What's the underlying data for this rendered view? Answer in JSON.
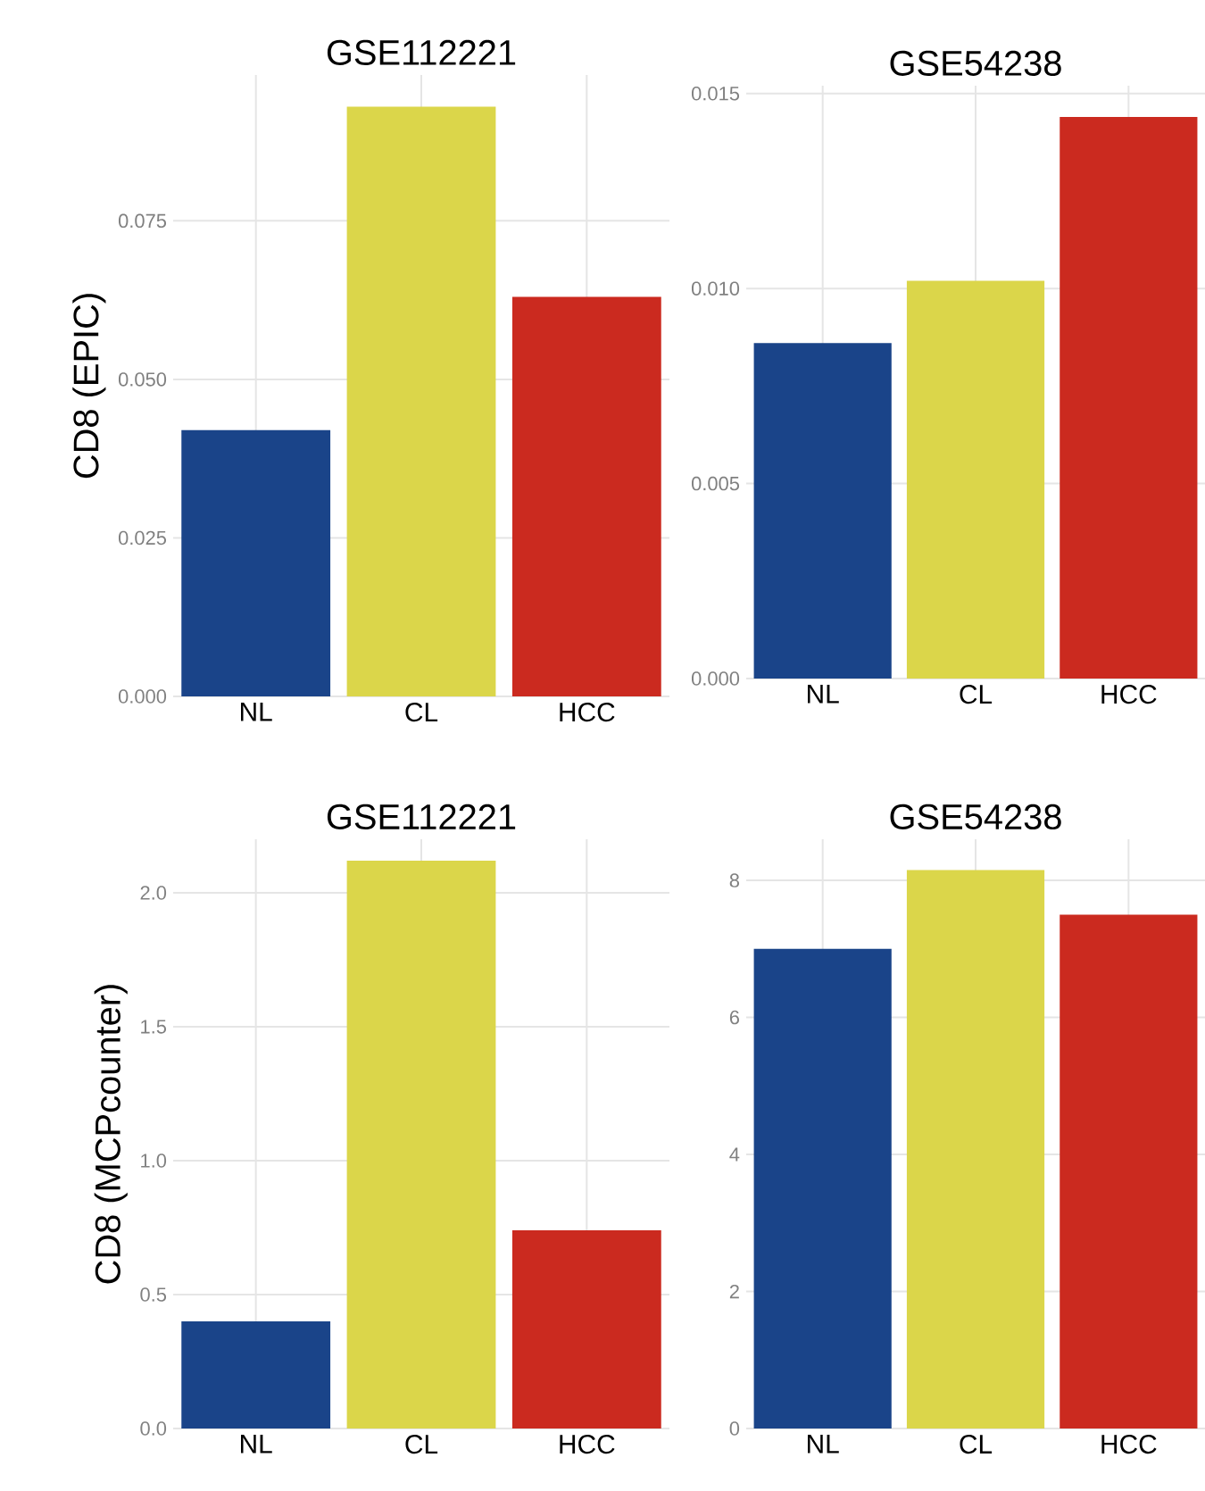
{
  "chart_data": [
    {
      "type": "bar",
      "title": "GSE112221",
      "ylabel": "CD8 (EPIC)",
      "categories": [
        "NL",
        "CL",
        "HCC"
      ],
      "values": [
        0.042,
        0.093,
        0.063
      ],
      "colors": [
        "#1a4489",
        "#dbd64a",
        "#cb2a1f"
      ],
      "ylim": [
        0,
        0.098
      ],
      "yticks": [
        {
          "value": 0,
          "label": "0.000"
        },
        {
          "value": 0.025,
          "label": "0.025"
        },
        {
          "value": 0.05,
          "label": "0.050"
        },
        {
          "value": 0.075,
          "label": "0.075"
        }
      ],
      "grid": true
    },
    {
      "type": "bar",
      "title": "GSE54238",
      "categories": [
        "NL",
        "CL",
        "HCC"
      ],
      "values": [
        0.0086,
        0.0102,
        0.0144
      ],
      "colors": [
        "#1a4489",
        "#dbd64a",
        "#cb2a1f"
      ],
      "ylim": [
        0,
        0.0152
      ],
      "yticks": [
        {
          "value": 0,
          "label": "0.000"
        },
        {
          "value": 0.005,
          "label": "0.005"
        },
        {
          "value": 0.01,
          "label": "0.010"
        },
        {
          "value": 0.015,
          "label": "0.015"
        }
      ],
      "grid": true
    },
    {
      "type": "bar",
      "title": "GSE112221",
      "ylabel": "CD8 (MCPcounter)",
      "categories": [
        "NL",
        "CL",
        "HCC"
      ],
      "values": [
        0.4,
        2.12,
        0.74
      ],
      "colors": [
        "#1a4489",
        "#dbd64a",
        "#cb2a1f"
      ],
      "ylim": [
        0,
        2.2
      ],
      "yticks": [
        {
          "value": 0,
          "label": "0.0"
        },
        {
          "value": 0.5,
          "label": "0.5"
        },
        {
          "value": 1,
          "label": "1.0"
        },
        {
          "value": 1.5,
          "label": "1.5"
        },
        {
          "value": 2,
          "label": "2.0"
        }
      ],
      "grid": true
    },
    {
      "type": "bar",
      "title": "GSE54238",
      "categories": [
        "NL",
        "CL",
        "HCC"
      ],
      "values": [
        7.0,
        8.15,
        7.5
      ],
      "colors": [
        "#1a4489",
        "#dbd64a",
        "#cb2a1f"
      ],
      "ylim": [
        0,
        8.6
      ],
      "yticks": [
        0,
        2,
        4,
        6,
        8
      ],
      "grid": true
    }
  ]
}
